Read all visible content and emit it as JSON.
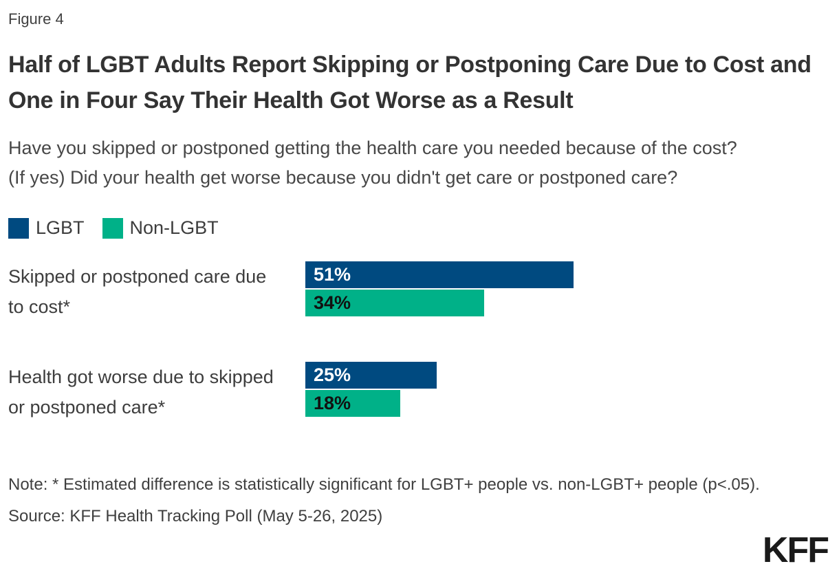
{
  "figure_label": "Figure 4",
  "title": "Half of LGBT Adults Report Skipping or Postponing Care Due to Cost and One in Four Say Their Health Got Worse as a Result",
  "subtitle": "Have you skipped or postponed getting the health care you needed because of the cost? (If yes) Did your health get worse because you didn't get care or postponed care?",
  "legend": {
    "items": [
      {
        "label": "LGBT",
        "color": "#004a80"
      },
      {
        "label": "Non-LGBT",
        "color": "#00b188"
      }
    ]
  },
  "chart_data": {
    "type": "bar",
    "orientation": "horizontal",
    "categories": [
      "Skipped or postponed care due to cost*",
      "Health got worse due to skipped or postponed care*"
    ],
    "series": [
      {
        "name": "LGBT",
        "color": "#004a80",
        "values": [
          51,
          25
        ]
      },
      {
        "name": "Non-LGBT",
        "color": "#00b188",
        "values": [
          34,
          18
        ]
      }
    ],
    "value_labels": [
      [
        "51%",
        "34%"
      ],
      [
        "25%",
        "18%"
      ]
    ],
    "xlim": [
      0,
      100
    ],
    "grid": false,
    "legend_position": "top-left",
    "value_label_position": "inside-left"
  },
  "note": "Note: * Estimated difference is statistically significant for LGBT+ people vs. non-LGBT+ people (p<.05).",
  "source": "Source: KFF Health Tracking Poll (May 5-26, 2025)",
  "logo": "KFF"
}
